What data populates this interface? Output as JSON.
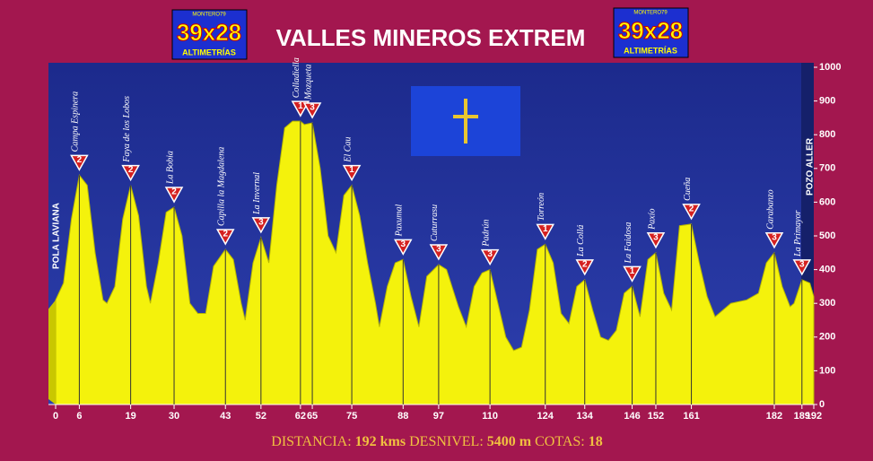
{
  "header": {
    "title": "VALLES MINEROS EXTREM",
    "logo": {
      "top": "MONTERO79",
      "main": "39x28",
      "bottom": "ALTIMETRÍAS"
    }
  },
  "chart_data": {
    "type": "area",
    "start_label": "POLA LAVIANA",
    "end_label": "POZO ALLER",
    "x": [
      0,
      2,
      4,
      6,
      8,
      10,
      12,
      13,
      15,
      17,
      19,
      21,
      23,
      24,
      26,
      28,
      30,
      32,
      34,
      36,
      38,
      40,
      43,
      45,
      47,
      48,
      50,
      52,
      54,
      56,
      58,
      60,
      62,
      63,
      65,
      67,
      69,
      71,
      73,
      75,
      77,
      79,
      81,
      82,
      84,
      86,
      88,
      90,
      92,
      94,
      97,
      99,
      102,
      104,
      106,
      108,
      110,
      112,
      114,
      116,
      118,
      120,
      122,
      124,
      126,
      128,
      130,
      132,
      134,
      136,
      138,
      140,
      142,
      144,
      146,
      148,
      150,
      152,
      154,
      156,
      158,
      161,
      163,
      165,
      167,
      169,
      171,
      175,
      178,
      180,
      182,
      184,
      186,
      187,
      189,
      191,
      192
    ],
    "y": [
      310,
      360,
      550,
      680,
      650,
      450,
      310,
      300,
      350,
      550,
      650,
      560,
      350,
      300,
      420,
      570,
      585,
      500,
      300,
      270,
      270,
      410,
      460,
      430,
      300,
      250,
      420,
      495,
      420,
      650,
      820,
      840,
      840,
      830,
      835,
      700,
      500,
      450,
      620,
      650,
      560,
      420,
      300,
      230,
      350,
      420,
      430,
      320,
      230,
      380,
      415,
      400,
      290,
      230,
      350,
      390,
      400,
      300,
      200,
      160,
      170,
      280,
      460,
      475,
      420,
      270,
      240,
      350,
      370,
      280,
      200,
      190,
      220,
      330,
      350,
      260,
      430,
      450,
      330,
      280,
      530,
      535,
      420,
      320,
      260,
      280,
      300,
      310,
      330,
      420,
      450,
      350,
      290,
      300,
      370,
      360,
      320
    ],
    "peaks": [
      {
        "name": "Campa Espinera",
        "km": 6,
        "elevation": 680,
        "category": 2
      },
      {
        "name": "Faya de los Lobos",
        "km": 19,
        "elevation": 650,
        "category": 2
      },
      {
        "name": "La Bobia",
        "km": 30,
        "elevation": 585,
        "category": 2
      },
      {
        "name": "Capilla la Magdalena",
        "km": 43,
        "elevation": 460,
        "category": 2
      },
      {
        "name": "La Invernal",
        "km": 52,
        "elevation": 495,
        "category": 3
      },
      {
        "name": "Colladiella",
        "km": 62,
        "elevation": 840,
        "category": 1
      },
      {
        "name": "Mozqueta",
        "km": 65,
        "elevation": 835,
        "category": 3
      },
      {
        "name": "El Cau",
        "km": 75,
        "elevation": 650,
        "category": 1
      },
      {
        "name": "Paxumal",
        "km": 88,
        "elevation": 430,
        "category": 3
      },
      {
        "name": "Cuturrasu",
        "km": 97,
        "elevation": 415,
        "category": 3
      },
      {
        "name": "Padrún",
        "km": 110,
        "elevation": 400,
        "category": 3
      },
      {
        "name": "Torreón",
        "km": 124,
        "elevation": 475,
        "category": 1
      },
      {
        "name": "La Collá",
        "km": 134,
        "elevation": 370,
        "category": 2
      },
      {
        "name": "La Faidosa",
        "km": 146,
        "elevation": 350,
        "category": 1
      },
      {
        "name": "Paxío",
        "km": 152,
        "elevation": 450,
        "category": 3
      },
      {
        "name": "Cueña",
        "km": 161,
        "elevation": 535,
        "category": 2
      },
      {
        "name": "Carabanzo",
        "km": 182,
        "elevation": 450,
        "category": 3
      },
      {
        "name": "La Primayor",
        "km": 189,
        "elevation": 370,
        "category": 3
      }
    ],
    "color": "#f4f20c",
    "xlim": [
      0,
      192
    ],
    "ylim": [
      0,
      1000
    ],
    "xticks": [
      0,
      6,
      19,
      30,
      43,
      52,
      62,
      65,
      75,
      88,
      97,
      110,
      124,
      134,
      146,
      152,
      161,
      182,
      189,
      192
    ],
    "yticks": [
      0,
      100,
      200,
      300,
      400,
      500,
      600,
      700,
      800,
      900,
      1000
    ]
  },
  "footer": {
    "distance_label": "DISTANCIA:",
    "distance": "192 kms",
    "climb_label": "DESNIVEL:",
    "climb": "5400 m",
    "peaks_label": "COTAS:",
    "peaks": "18"
  }
}
